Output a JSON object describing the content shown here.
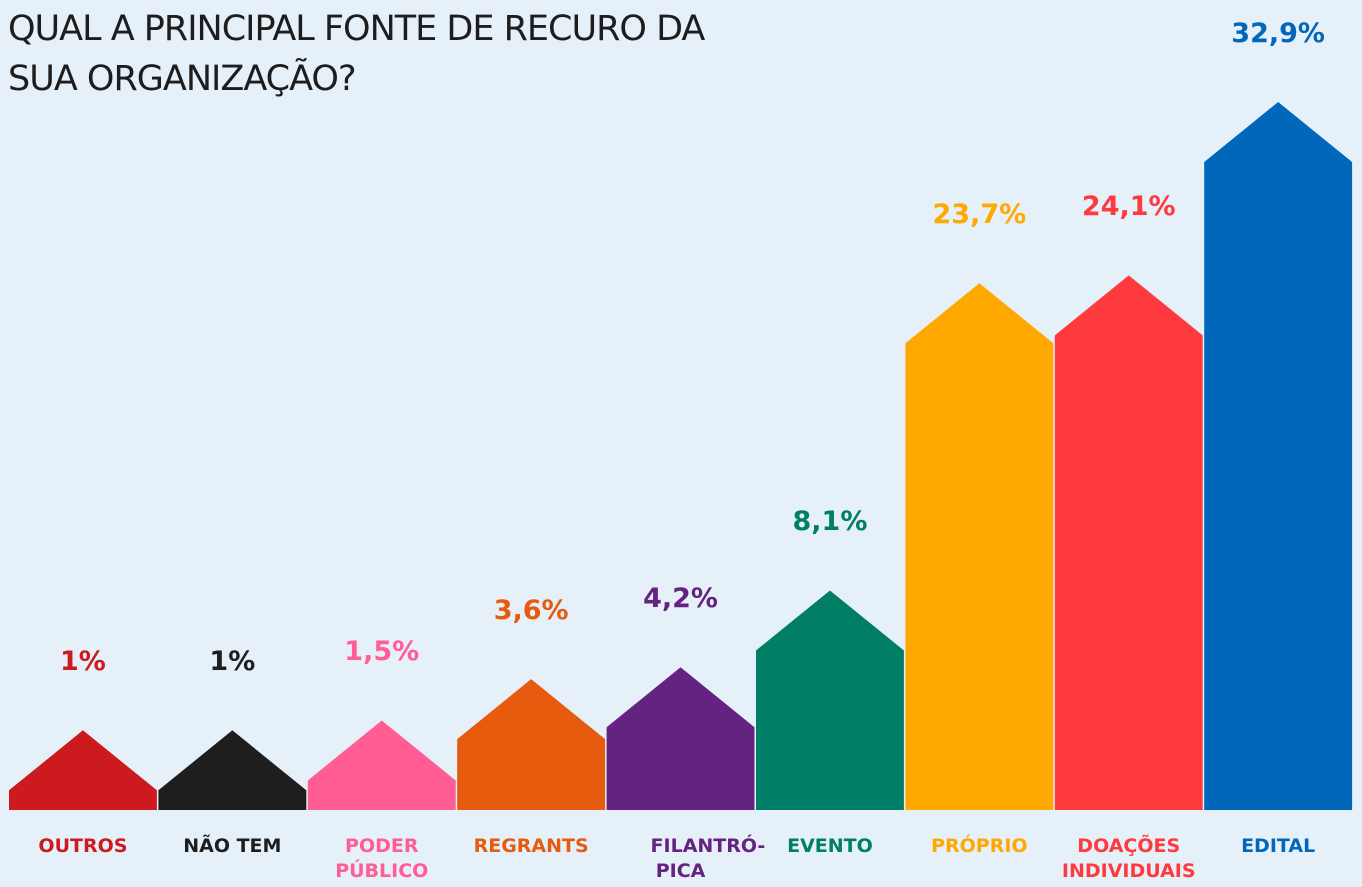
{
  "chart_data": {
    "type": "bar",
    "title": "QUAL A PRINCIPAL FONTE DE RECURO DA SUA ORGANIZAÇÃO?",
    "categories": [
      "OUTROS",
      "NÃO TEM",
      "PODER PÚBLICO",
      "REGRANTS",
      "FILANTRÓ-PICA",
      "EVENTO",
      "PRÓPRIO",
      "DOAÇÕES INDIVIDUAIS",
      "EDITAL"
    ],
    "values": [
      1,
      1,
      1.5,
      3.6,
      4.2,
      8.1,
      23.7,
      24.1,
      32.9
    ],
    "value_labels": [
      "1%",
      "1%",
      "1,5%",
      "3,6%",
      "4,2%",
      "8,1%",
      "23,7%",
      "24,1%",
      "32,9%"
    ],
    "colors": [
      "#cc1a1f",
      "#1e1e1e",
      "#ff5d93",
      "#e75b0f",
      "#652381",
      "#007e66",
      "#ffa800",
      "#ff3a3f",
      "#0067bb"
    ]
  }
}
